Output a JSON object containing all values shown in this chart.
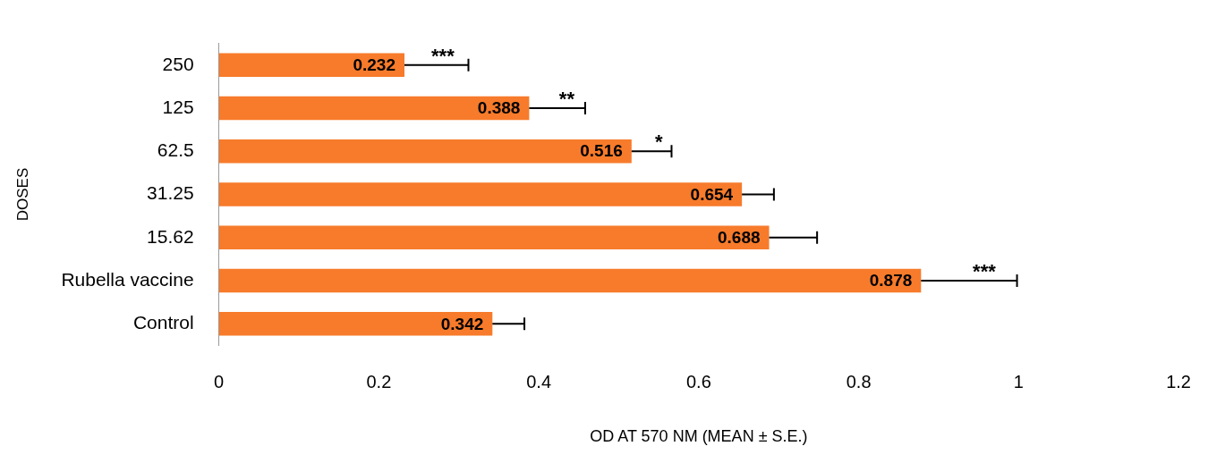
{
  "chart_data": {
    "type": "bar",
    "orientation": "horizontal",
    "xlabel": "OD AT 570 NM (MEAN ± S.E.)",
    "ylabel": "DOSES",
    "categories": [
      "250",
      "125",
      "62.5",
      "31.25",
      "15.62",
      "Rubella vaccine",
      "Control"
    ],
    "values": [
      0.232,
      0.388,
      0.516,
      0.654,
      0.688,
      0.878,
      0.342
    ],
    "errors": [
      0.08,
      0.07,
      0.05,
      0.04,
      0.06,
      0.12,
      0.04
    ],
    "color": "#f77b2b",
    "xlim": [
      0,
      1.2
    ],
    "xticks": [
      0,
      0.2,
      0.4,
      0.6,
      0.8,
      1,
      1.2
    ],
    "data_labels": true,
    "grid": false,
    "legend": false,
    "annotations": [
      {
        "text": "***",
        "x": 0.28,
        "y": "250"
      },
      {
        "text": "**",
        "x": 0.435,
        "y": "125"
      },
      {
        "text": "*",
        "x": 0.55,
        "y": "62.5"
      },
      {
        "text": "***",
        "x": 0.957,
        "y": "Rubella vaccine"
      }
    ]
  }
}
